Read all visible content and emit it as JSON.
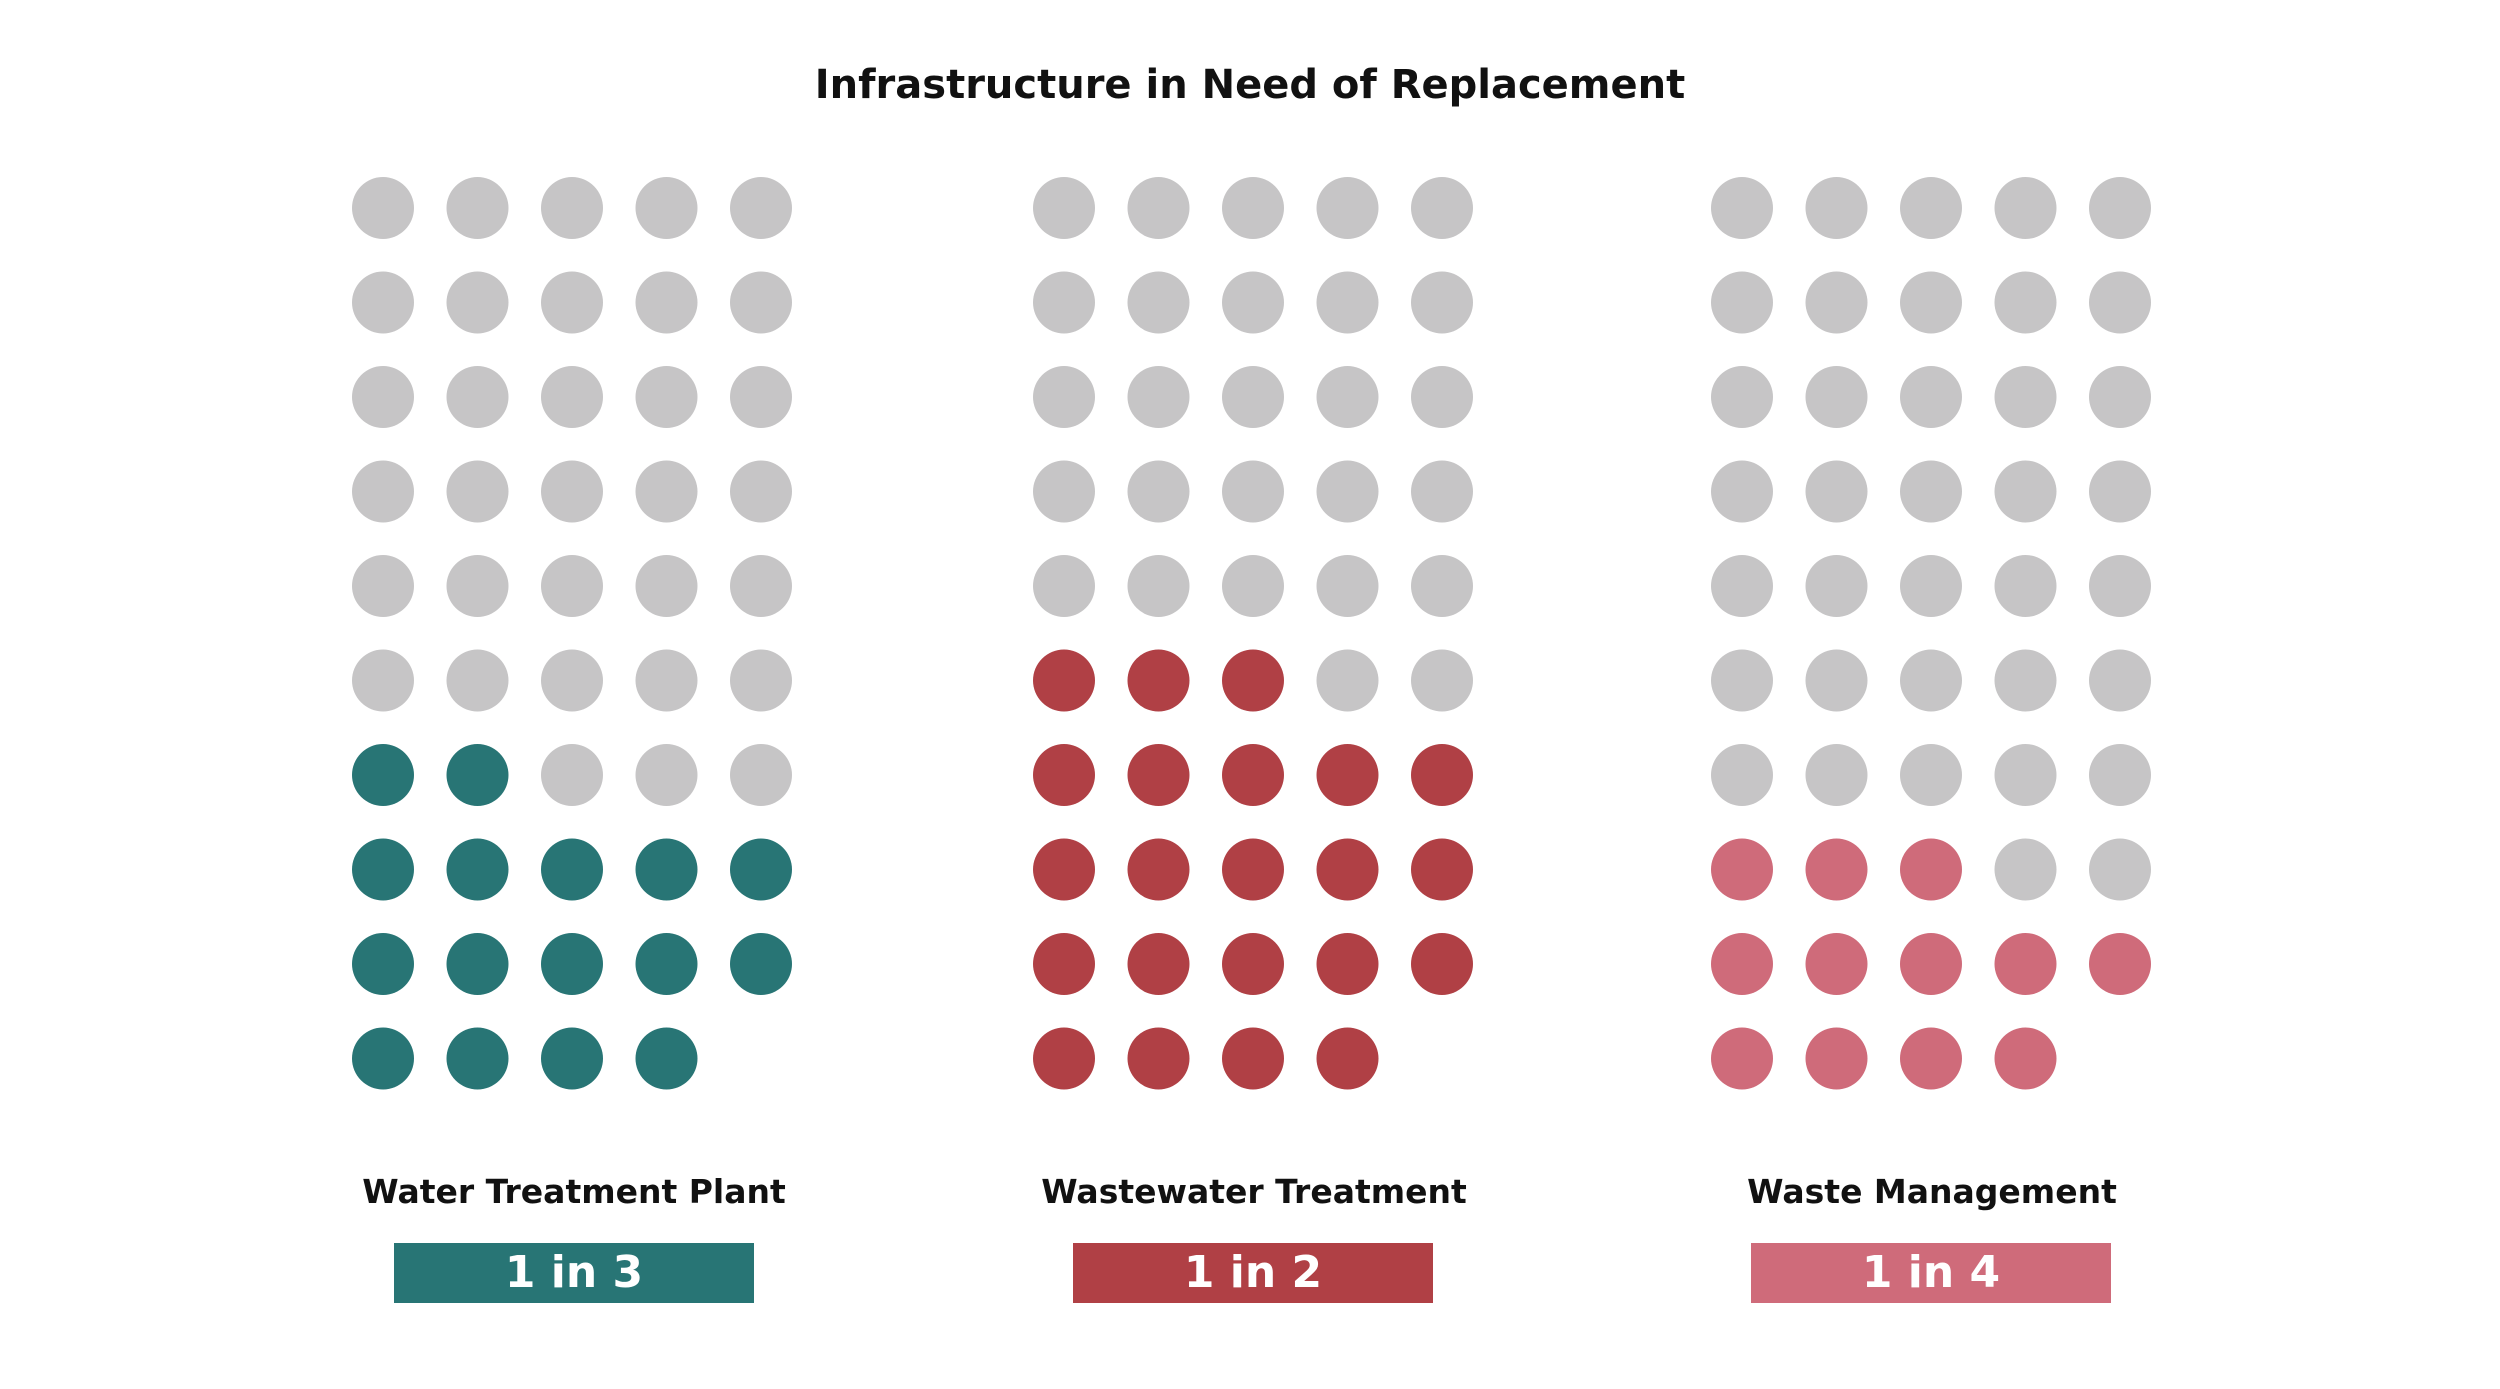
{
  "title": "Infrastructure in Need of Replacement",
  "colors": {
    "inactive": "#c6c5c6",
    "text": "#111111",
    "badge_text": "#ffffff"
  },
  "chart_data": [
    {
      "type": "waffle",
      "category": "Water Treatment Plant",
      "ratio_label": "1 in 3",
      "total_units": 49,
      "highlighted_units": 16,
      "columns": 5,
      "color": "#287575"
    },
    {
      "type": "waffle",
      "category": "Wastewater Treatment",
      "ratio_label": "1 in 2",
      "total_units": 49,
      "highlighted_units": 22,
      "columns": 5,
      "color": "#b04045"
    },
    {
      "type": "waffle",
      "category": "Waste Management",
      "ratio_label": "1 in 4",
      "total_units": 49,
      "highlighted_units": 12,
      "columns": 5,
      "color": "#cf6b7a"
    }
  ]
}
